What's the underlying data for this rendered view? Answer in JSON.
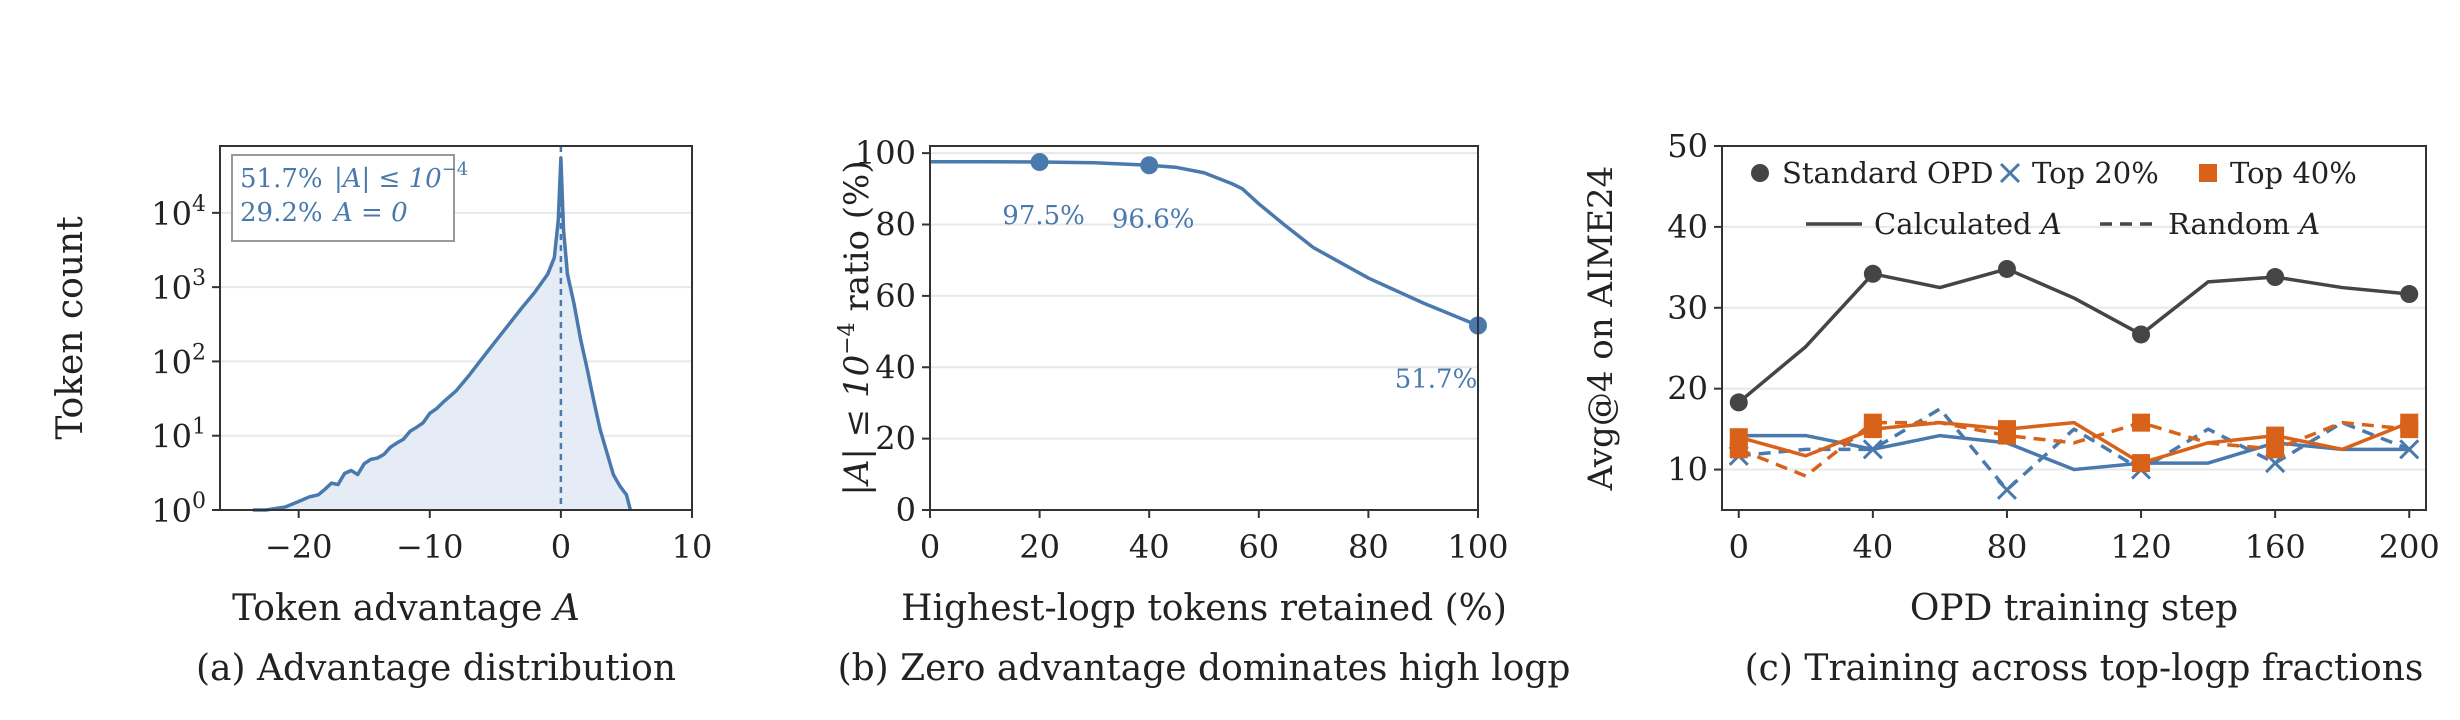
{
  "colors": {
    "blue": "#4a7aad",
    "blue_fill": "#e6ecf5",
    "orange": "#d9621a",
    "dark": "#454545",
    "grid": "#e8e8e8",
    "axis": "#333333"
  },
  "chart_data": [
    {
      "type": "area",
      "caption": "(a) Advantage distribution",
      "xlabel_text": "Token advantage ",
      "xlabel_var": "A",
      "ylabel": "Token count",
      "xlim": [
        -26,
        10
      ],
      "ylim_log10": [
        0,
        4.9
      ],
      "y_scale": "log",
      "xticks": [
        -20,
        -10,
        0,
        10
      ],
      "xtick_labels": [
        "−20",
        "−10",
        "0",
        "10"
      ],
      "yticks_exp": [
        0,
        1,
        2,
        3,
        4
      ],
      "ytick_base": "10",
      "grid": true,
      "vline_x": 0,
      "annotation": [
        {
          "pct": "51.7%",
          "expr": "|A| ≤ 10",
          "sup": "−4"
        },
        {
          "pct": "29.2%",
          "expr": "A = 0",
          "sup": ""
        }
      ],
      "x": [
        -23.5,
        -22.5,
        -21,
        -20,
        -19.2,
        -18.5,
        -18,
        -17.5,
        -17,
        -16.5,
        -16,
        -15.5,
        -15,
        -14.5,
        -14,
        -13.5,
        -13,
        -12.5,
        -12,
        -11.5,
        -11,
        -10.5,
        -10,
        -9.5,
        -9,
        -8,
        -7,
        -6,
        -5,
        -4,
        -3,
        -2,
        -1,
        -0.5,
        -0.2,
        0,
        0.2,
        0.5,
        1,
        1.5,
        2,
        2.5,
        3,
        3.5,
        4,
        4.5,
        5,
        5.3
      ],
      "y": [
        1.0,
        0.9,
        1.1,
        1.3,
        1.5,
        1.6,
        1.9,
        2.3,
        2.2,
        3.1,
        3.4,
        3.0,
        4.2,
        4.8,
        5.0,
        5.6,
        7.0,
        8.0,
        9.0,
        11.5,
        13,
        15,
        20,
        23,
        28,
        40,
        65,
        110,
        185,
        310,
        520,
        850,
        1500,
        2500,
        8000,
        55000,
        6000,
        1500,
        600,
        200,
        80,
        30,
        12,
        6,
        3.0,
        2.1,
        1.6,
        1.0
      ]
    },
    {
      "type": "line",
      "caption": "(b) Zero advantage dominates high logp",
      "xlabel": "Highest-logp tokens retained (%)",
      "ylabel_prefix": "|A| ≤ 10",
      "ylabel_sup": "−4",
      "ylabel_suffix": " ratio (%)",
      "xlim": [
        0,
        100
      ],
      "ylim": [
        0,
        102
      ],
      "xticks": [
        0,
        20,
        40,
        60,
        80,
        100
      ],
      "yticks": [
        0,
        20,
        40,
        60,
        80,
        100
      ],
      "grid": true,
      "x": [
        0,
        10,
        20,
        30,
        40,
        45,
        50,
        55,
        57,
        60,
        65,
        70,
        80,
        90,
        100
      ],
      "y": [
        97.6,
        97.6,
        97.5,
        97.3,
        96.6,
        96.0,
        94.5,
        91.5,
        90.0,
        85.8,
        79.5,
        73.5,
        65.0,
        58.0,
        51.7
      ],
      "markers_x": [
        20,
        40,
        100
      ],
      "markers_y": [
        97.5,
        96.6,
        51.7
      ],
      "marker_labels": [
        "97.5%",
        "96.6%",
        "51.7%"
      ]
    },
    {
      "type": "line",
      "caption": "(c) Training across top-logp fractions",
      "xlabel": "OPD training step",
      "ylabel": "Avg@4 on AIME24",
      "xlim": [
        -5,
        205
      ],
      "ylim": [
        5,
        50
      ],
      "xticks": [
        0,
        40,
        80,
        120,
        160,
        200
      ],
      "yticks": [
        10,
        20,
        30,
        40,
        50
      ],
      "grid": true,
      "x": [
        0,
        20,
        40,
        60,
        80,
        100,
        120,
        140,
        160,
        180,
        200
      ],
      "legend": {
        "standard": "Standard OPD",
        "top20": "Top 20%",
        "top40": "Top 40%",
        "calc_text": "Calculated ",
        "random_text": "Random ",
        "var": "A"
      },
      "series": [
        {
          "key": "standard",
          "color": "dark",
          "dash": false,
          "marker": "circle",
          "marker_x": [
            0,
            40,
            80,
            120,
            160,
            200
          ],
          "values": [
            18.3,
            25.2,
            34.2,
            32.5,
            34.8,
            31.2,
            26.7,
            33.2,
            33.8,
            32.5,
            31.7
          ]
        },
        {
          "key": "top20_calc",
          "color": "blue",
          "dash": false,
          "marker": "x",
          "marker_x": [],
          "values": [
            14.2,
            14.2,
            12.5,
            14.2,
            13.3,
            10.0,
            10.8,
            10.8,
            13.3,
            12.5,
            12.5
          ]
        },
        {
          "key": "top20_rand",
          "color": "blue",
          "dash": true,
          "marker": "x",
          "marker_x": [
            0,
            40,
            80,
            120,
            160,
            200
          ],
          "values": [
            11.7,
            12.5,
            12.5,
            17.5,
            7.5,
            15.0,
            10.0,
            15.0,
            10.8,
            15.8,
            12.5
          ]
        },
        {
          "key": "top40_calc",
          "color": "orange",
          "dash": false,
          "marker": "square",
          "marker_x": [
            0,
            40,
            80,
            120,
            160,
            200
          ],
          "values": [
            14.0,
            11.7,
            15.0,
            15.8,
            15.0,
            15.8,
            10.8,
            13.3,
            14.2,
            12.5,
            15.8
          ]
        },
        {
          "key": "top40_rand",
          "color": "orange",
          "dash": true,
          "marker": "square",
          "marker_x": [
            0,
            40,
            80,
            120,
            160,
            200
          ],
          "values": [
            12.5,
            9.2,
            15.8,
            15.8,
            14.2,
            13.3,
            15.8,
            13.3,
            12.5,
            15.8,
            15.0
          ]
        }
      ]
    }
  ]
}
